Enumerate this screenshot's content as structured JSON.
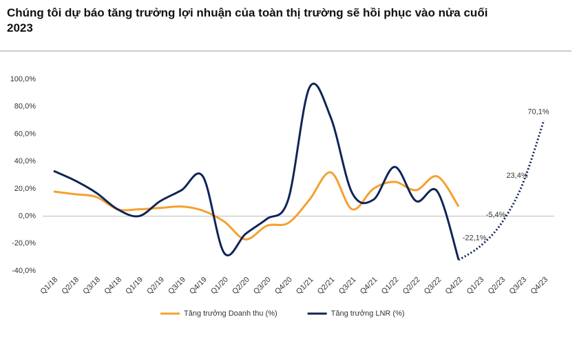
{
  "chart_data": {
    "type": "line",
    "title": "Chúng tôi dự báo tăng trưởng lợi nhuận của toàn thị trường sẽ hồi phục vào nửa cuối 2023",
    "categories": [
      "Q1/18",
      "Q2/18",
      "Q3/18",
      "Q4/18",
      "Q1/19",
      "Q2/19",
      "Q3/19",
      "Q4/19",
      "Q1/20",
      "Q2/20",
      "Q3/20",
      "Q4/20",
      "Q1/21",
      "Q2/21",
      "Q3/21",
      "Q4/21",
      "Q1/22",
      "Q2/22",
      "Q3/22",
      "Q4/22",
      "Q1/23",
      "Q2/23",
      "Q3/23",
      "Q4/23"
    ],
    "series": [
      {
        "name": "Tăng trưởng Doanh thu (%)",
        "color": "#f5a030",
        "values": [
          18,
          16,
          14,
          5,
          5,
          6,
          7,
          4,
          -4,
          -17,
          -7,
          -5,
          12,
          32,
          5,
          20,
          25,
          19,
          29,
          7,
          null,
          null,
          null,
          null
        ]
      },
      {
        "name": "Tăng trưởng LNR (%)",
        "color": "#0f2457",
        "values": [
          33,
          26,
          17,
          5,
          0,
          11,
          19,
          29,
          -27,
          -13,
          -2,
          12,
          94,
          72,
          17,
          12,
          36,
          11,
          18,
          -32,
          null,
          null,
          null,
          null
        ]
      },
      {
        "color": "#0f2457",
        "dash": true,
        "values": [
          null,
          null,
          null,
          null,
          null,
          null,
          null,
          null,
          null,
          null,
          null,
          null,
          null,
          null,
          null,
          null,
          null,
          null,
          null,
          null,
          -22.1,
          -5.4,
          23.4,
          70.1
        ],
        "value_labels": [
          null,
          null,
          null,
          null,
          null,
          null,
          null,
          null,
          null,
          null,
          null,
          null,
          null,
          null,
          null,
          null,
          null,
          null,
          null,
          null,
          "-22,1%",
          "-5,4%",
          "23,4%",
          "70,1%"
        ]
      }
    ],
    "ylim": [
      -40,
      100
    ],
    "yticks": [
      {
        "value": -40,
        "label": "-40,0%"
      },
      {
        "value": -20,
        "label": "-20,0%"
      },
      {
        "value": 0,
        "label": "0,0%"
      },
      {
        "value": 20,
        "label": "20,0%"
      },
      {
        "value": 40,
        "label": "40,0%"
      },
      {
        "value": 60,
        "label": "60,0%"
      },
      {
        "value": 80,
        "label": "80,0%"
      },
      {
        "value": 100,
        "label": "100,0%"
      }
    ],
    "grid": false,
    "legend": "bottom"
  }
}
